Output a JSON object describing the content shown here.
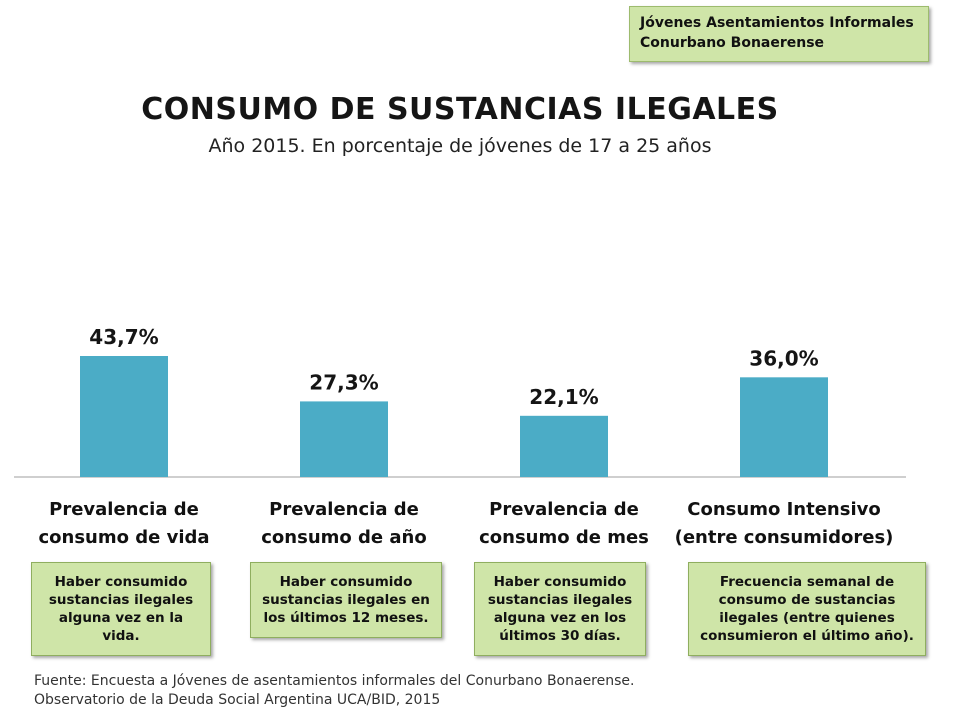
{
  "tag": {
    "lines": [
      "Jóvenes Asentamientos Informales",
      "Conurbano Bonaerense"
    ]
  },
  "chart_data": {
    "type": "bar",
    "title": "CONSUMO DE SUSTANCIAS ILEGALES",
    "subtitle": "Año 2015.  En porcentaje de jóvenes de 17 a 25 años",
    "categories": [
      [
        "Prevalencia de",
        "consumo de vida"
      ],
      [
        "Prevalencia de",
        "consumo de año"
      ],
      [
        "Prevalencia de",
        "consumo de mes"
      ],
      [
        "Consumo Intensivo",
        "(entre consumidores)"
      ]
    ],
    "values": [
      43.7,
      27.3,
      22.1,
      36.0
    ],
    "data_labels": [
      "43,7%",
      "27,3%",
      "22,1%",
      "36,0%"
    ],
    "ylim": [
      0,
      50
    ],
    "bar_color": "#4bacc6",
    "grid": false,
    "legend": "none"
  },
  "notes": [
    [
      "Haber consumido",
      "sustancias ilegales",
      "alguna vez en la",
      "vida."
    ],
    [
      "Haber consumido",
      "sustancias ilegales en",
      "los últimos 12 meses."
    ],
    [
      "Haber consumido",
      "sustancias ilegales",
      "alguna vez en los",
      "últimos 30 días."
    ],
    [
      "Frecuencia semanal de",
      "consumo de sustancias",
      "ilegales (entre quienes",
      "consumieron el último año)."
    ]
  ],
  "source": {
    "lines": [
      "Fuente: Encuesta a Jóvenes de asentamientos informales del Conurbano Bonaerense.",
      "Observatorio de la Deuda Social Argentina UCA/BID, 2015"
    ]
  },
  "colors": {
    "note_bg": "#cfe5a8",
    "axis": "#bfbfbf"
  }
}
